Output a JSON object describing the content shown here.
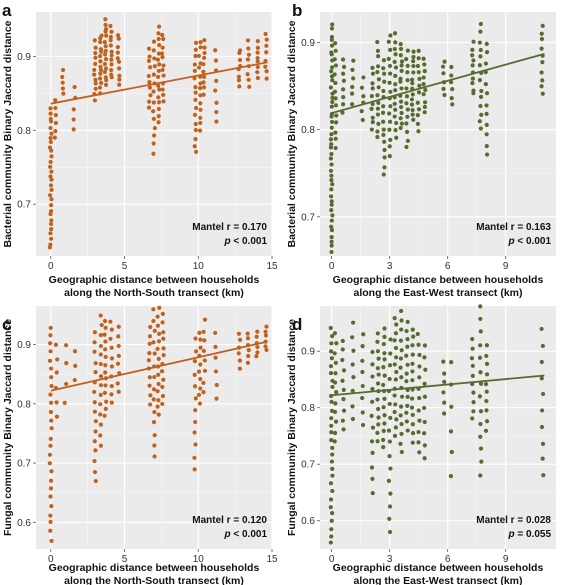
{
  "chart_data": [
    {
      "type": "scatter",
      "letter": "a",
      "xlabel": [
        "Geographic distance between households",
        "along the North-South transect (km)"
      ],
      "ylabel": "Bacterial community Binary Jaccard distance",
      "xlim": [
        -1,
        15
      ],
      "ylim": [
        0.63,
        0.96
      ],
      "xticks": [
        0,
        5,
        10,
        15
      ],
      "yticks": [
        0.7,
        0.8,
        0.9
      ],
      "xtick_labels": [
        "0",
        "5",
        "10",
        "15"
      ],
      "ytick_labels": [
        "0.7",
        "0.8",
        "0.9"
      ],
      "color": "#c0621e",
      "stat_line1": "Mantel r = 0.170",
      "stat_line2_p": "p",
      "stat_line2_rest": " < 0.001",
      "trend": {
        "x": [
          0,
          14.7
        ],
        "y": [
          0.836,
          0.892
        ]
      },
      "x_columns": [
        0,
        0.3,
        0.8,
        1.6,
        3,
        3.4,
        3.7,
        4.1,
        4.6,
        6.7,
        7,
        7.3,
        7.6,
        9.8,
        10.1,
        10.4,
        11.2,
        12.8,
        13.4,
        14,
        14.6
      ],
      "clusters": [
        {
          "x": 0,
          "ymin": 0.64,
          "ymax": 0.83,
          "n": 30
        },
        {
          "x": 0.3,
          "ymin": 0.79,
          "ymax": 0.84,
          "n": 6
        },
        {
          "x": 0.8,
          "ymin": 0.85,
          "ymax": 0.88,
          "n": 5
        },
        {
          "x": 1.6,
          "ymin": 0.8,
          "ymax": 0.86,
          "n": 5
        },
        {
          "x": 3,
          "ymin": 0.84,
          "ymax": 0.92,
          "n": 12
        },
        {
          "x": 3.4,
          "ymin": 0.85,
          "ymax": 0.93,
          "n": 14
        },
        {
          "x": 3.7,
          "ymin": 0.86,
          "ymax": 0.95,
          "n": 16
        },
        {
          "x": 4.1,
          "ymin": 0.87,
          "ymax": 0.94,
          "n": 12
        },
        {
          "x": 4.6,
          "ymin": 0.86,
          "ymax": 0.93,
          "n": 10
        },
        {
          "x": 6.7,
          "ymin": 0.83,
          "ymax": 0.91,
          "n": 10
        },
        {
          "x": 7,
          "ymin": 0.77,
          "ymax": 0.92,
          "n": 14
        },
        {
          "x": 7.3,
          "ymin": 0.81,
          "ymax": 0.94,
          "n": 16
        },
        {
          "x": 7.6,
          "ymin": 0.84,
          "ymax": 0.93,
          "n": 12
        },
        {
          "x": 9.8,
          "ymin": 0.77,
          "ymax": 0.92,
          "n": 16
        },
        {
          "x": 10.1,
          "ymin": 0.8,
          "ymax": 0.92,
          "n": 14
        },
        {
          "x": 10.4,
          "ymin": 0.85,
          "ymax": 0.92,
          "n": 10
        },
        {
          "x": 11.2,
          "ymin": 0.81,
          "ymax": 0.91,
          "n": 8
        },
        {
          "x": 12.8,
          "ymin": 0.86,
          "ymax": 0.91,
          "n": 8
        },
        {
          "x": 13.4,
          "ymin": 0.86,
          "ymax": 0.92,
          "n": 8
        },
        {
          "x": 14,
          "ymin": 0.87,
          "ymax": 0.92,
          "n": 8
        },
        {
          "x": 14.6,
          "ymin": 0.87,
          "ymax": 0.93,
          "n": 8
        }
      ]
    },
    {
      "type": "scatter",
      "letter": "b",
      "xlabel": [
        "Geographic distance between households",
        "along the East-West transect (km)"
      ],
      "ylabel": "Bacterial community Binary Jaccard distance",
      "xlim": [
        -0.6,
        11.6
      ],
      "ylim": [
        0.655,
        0.935
      ],
      "xticks": [
        0,
        3,
        6,
        9
      ],
      "yticks": [
        0.7,
        0.8,
        0.9
      ],
      "xtick_labels": [
        "0",
        "3",
        "6",
        "9"
      ],
      "ytick_labels": [
        "0.7",
        "0.8",
        "0.9"
      ],
      "color": "#576b2e",
      "stat_line1": "Mantel r = 0.163",
      "stat_line2_p": "p",
      "stat_line2_rest": " < 0.001",
      "trend": {
        "x": [
          0,
          11
        ],
        "y": [
          0.819,
          0.887
        ]
      },
      "clusters": [
        {
          "x": 0,
          "ymin": 0.66,
          "ymax": 0.92,
          "n": 45
        },
        {
          "x": 0.2,
          "ymin": 0.78,
          "ymax": 0.9,
          "n": 14
        },
        {
          "x": 0.6,
          "ymin": 0.82,
          "ymax": 0.88,
          "n": 8
        },
        {
          "x": 1.1,
          "ymin": 0.83,
          "ymax": 0.88,
          "n": 6
        },
        {
          "x": 1.6,
          "ymin": 0.81,
          "ymax": 0.86,
          "n": 6
        },
        {
          "x": 2.1,
          "ymin": 0.8,
          "ymax": 0.87,
          "n": 10
        },
        {
          "x": 2.4,
          "ymin": 0.79,
          "ymax": 0.9,
          "n": 14
        },
        {
          "x": 2.7,
          "ymin": 0.75,
          "ymax": 0.88,
          "n": 16
        },
        {
          "x": 3,
          "ymin": 0.77,
          "ymax": 0.91,
          "n": 16
        },
        {
          "x": 3.3,
          "ymin": 0.79,
          "ymax": 0.91,
          "n": 16
        },
        {
          "x": 3.6,
          "ymin": 0.8,
          "ymax": 0.9,
          "n": 16
        },
        {
          "x": 3.9,
          "ymin": 0.78,
          "ymax": 0.89,
          "n": 14
        },
        {
          "x": 4.2,
          "ymin": 0.81,
          "ymax": 0.89,
          "n": 14
        },
        {
          "x": 4.5,
          "ymin": 0.8,
          "ymax": 0.89,
          "n": 12
        },
        {
          "x": 4.8,
          "ymin": 0.82,
          "ymax": 0.88,
          "n": 10
        },
        {
          "x": 5.8,
          "ymin": 0.84,
          "ymax": 0.88,
          "n": 6
        },
        {
          "x": 6.2,
          "ymin": 0.83,
          "ymax": 0.87,
          "n": 6
        },
        {
          "x": 7.3,
          "ymin": 0.84,
          "ymax": 0.9,
          "n": 10
        },
        {
          "x": 7.7,
          "ymin": 0.8,
          "ymax": 0.92,
          "n": 14
        },
        {
          "x": 8.0,
          "ymin": 0.77,
          "ymax": 0.9,
          "n": 12
        },
        {
          "x": 10.9,
          "ymin": 0.84,
          "ymax": 0.92,
          "n": 10
        }
      ]
    },
    {
      "type": "scatter",
      "letter": "c",
      "xlabel": [
        "Geographic distance between households",
        "along the North-South transect (km)"
      ],
      "ylabel": "Fungal community Binary Jaccard distance",
      "xlim": [
        -1,
        15
      ],
      "ylim": [
        0.555,
        0.965
      ],
      "xticks": [
        0,
        5,
        10,
        15
      ],
      "yticks": [
        0.6,
        0.7,
        0.8,
        0.9
      ],
      "xtick_labels": [
        "0",
        "5",
        "10",
        "15"
      ],
      "ytick_labels": [
        "0.6",
        "0.7",
        "0.8",
        "0.9"
      ],
      "color": "#c0621e",
      "stat_line1": "Mantel r = 0.120",
      "stat_line2_p": "p",
      "stat_line2_rest": " < 0.001",
      "trend": {
        "x": [
          0,
          14.7
        ],
        "y": [
          0.822,
          0.905
        ]
      },
      "clusters": [
        {
          "x": 0,
          "ymin": 0.57,
          "ymax": 0.93,
          "n": 26
        },
        {
          "x": 0.4,
          "ymin": 0.78,
          "ymax": 0.9,
          "n": 6
        },
        {
          "x": 1.0,
          "ymin": 0.8,
          "ymax": 0.9,
          "n": 4
        },
        {
          "x": 1.6,
          "ymin": 0.84,
          "ymax": 0.89,
          "n": 3
        },
        {
          "x": 3,
          "ymin": 0.67,
          "ymax": 0.92,
          "n": 16
        },
        {
          "x": 3.4,
          "ymin": 0.73,
          "ymax": 0.95,
          "n": 14
        },
        {
          "x": 3.7,
          "ymin": 0.78,
          "ymax": 0.94,
          "n": 14
        },
        {
          "x": 4.1,
          "ymin": 0.8,
          "ymax": 0.94,
          "n": 10
        },
        {
          "x": 4.6,
          "ymin": 0.82,
          "ymax": 0.93,
          "n": 8
        },
        {
          "x": 6.7,
          "ymin": 0.8,
          "ymax": 0.93,
          "n": 10
        },
        {
          "x": 7,
          "ymin": 0.71,
          "ymax": 0.96,
          "n": 14
        },
        {
          "x": 7.3,
          "ymin": 0.78,
          "ymax": 0.96,
          "n": 14
        },
        {
          "x": 7.6,
          "ymin": 0.8,
          "ymax": 0.95,
          "n": 12
        },
        {
          "x": 9.8,
          "ymin": 0.69,
          "ymax": 0.91,
          "n": 12
        },
        {
          "x": 10.1,
          "ymin": 0.8,
          "ymax": 0.92,
          "n": 10
        },
        {
          "x": 10.4,
          "ymin": 0.82,
          "ymax": 0.94,
          "n": 8
        },
        {
          "x": 11.2,
          "ymin": 0.81,
          "ymax": 0.92,
          "n": 6
        },
        {
          "x": 12.8,
          "ymin": 0.86,
          "ymax": 0.92,
          "n": 6
        },
        {
          "x": 13.4,
          "ymin": 0.87,
          "ymax": 0.92,
          "n": 6
        },
        {
          "x": 14,
          "ymin": 0.88,
          "ymax": 0.92,
          "n": 6
        },
        {
          "x": 14.6,
          "ymin": 0.89,
          "ymax": 0.93,
          "n": 6
        }
      ]
    },
    {
      "type": "scatter",
      "letter": "d",
      "xlabel": [
        "Geographic distance between households",
        "along the East-West transect (km)"
      ],
      "ylabel": "Fungal community Binary Jaccard distance",
      "xlim": [
        -0.6,
        11.6
      ],
      "ylim": [
        0.55,
        0.98
      ],
      "xticks": [
        0,
        3,
        6,
        9
      ],
      "yticks": [
        0.6,
        0.7,
        0.8,
        0.9
      ],
      "xtick_labels": [
        "0",
        "3",
        "6",
        "9"
      ],
      "ytick_labels": [
        "0.6",
        "0.7",
        "0.8",
        "0.9"
      ],
      "color": "#576b2e",
      "stat_line1": "Mantel r = 0.028",
      "stat_line2_p": "p",
      "stat_line2_rest": " = 0.055",
      "trend": {
        "x": [
          0,
          11
        ],
        "y": [
          0.822,
          0.857
        ]
      },
      "clusters": [
        {
          "x": 0,
          "ymin": 0.56,
          "ymax": 0.94,
          "n": 30
        },
        {
          "x": 0.2,
          "ymin": 0.74,
          "ymax": 0.93,
          "n": 12
        },
        {
          "x": 0.6,
          "ymin": 0.76,
          "ymax": 0.92,
          "n": 10
        },
        {
          "x": 1.1,
          "ymin": 0.78,
          "ymax": 0.95,
          "n": 8
        },
        {
          "x": 1.6,
          "ymin": 0.77,
          "ymax": 0.93,
          "n": 8
        },
        {
          "x": 2.1,
          "ymin": 0.65,
          "ymax": 0.9,
          "n": 12
        },
        {
          "x": 2.4,
          "ymin": 0.74,
          "ymax": 0.93,
          "n": 14
        },
        {
          "x": 2.7,
          "ymin": 0.73,
          "ymax": 0.94,
          "n": 16
        },
        {
          "x": 3,
          "ymin": 0.58,
          "ymax": 0.92,
          "n": 16
        },
        {
          "x": 3.3,
          "ymin": 0.75,
          "ymax": 0.96,
          "n": 16
        },
        {
          "x": 3.6,
          "ymin": 0.72,
          "ymax": 0.97,
          "n": 16
        },
        {
          "x": 3.9,
          "ymin": 0.76,
          "ymax": 0.95,
          "n": 14
        },
        {
          "x": 4.2,
          "ymin": 0.74,
          "ymax": 0.94,
          "n": 14
        },
        {
          "x": 4.5,
          "ymin": 0.72,
          "ymax": 0.93,
          "n": 12
        },
        {
          "x": 4.8,
          "ymin": 0.71,
          "ymax": 0.91,
          "n": 10
        },
        {
          "x": 5.8,
          "ymin": 0.79,
          "ymax": 0.88,
          "n": 6
        },
        {
          "x": 6.2,
          "ymin": 0.68,
          "ymax": 0.88,
          "n": 6
        },
        {
          "x": 7.3,
          "ymin": 0.78,
          "ymax": 0.92,
          "n": 10
        },
        {
          "x": 7.7,
          "ymin": 0.68,
          "ymax": 0.98,
          "n": 14
        },
        {
          "x": 8.0,
          "ymin": 0.76,
          "ymax": 0.91,
          "n": 10
        },
        {
          "x": 10.9,
          "ymin": 0.68,
          "ymax": 0.94,
          "n": 10
        }
      ]
    }
  ]
}
